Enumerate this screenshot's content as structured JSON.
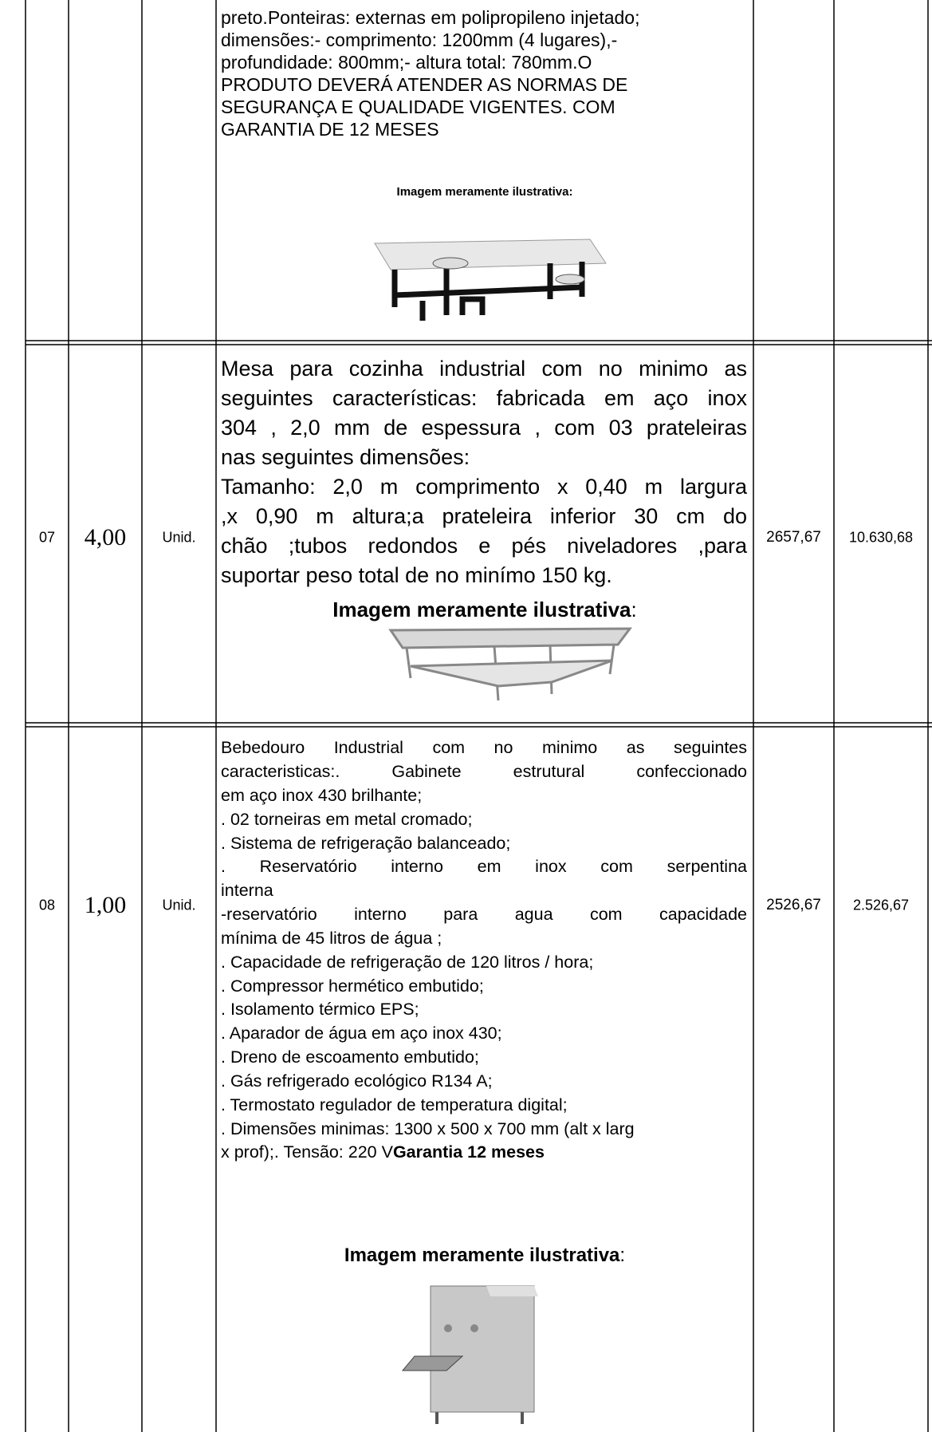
{
  "table": {
    "rows": [
      {
        "description": [
          "preto.Ponteiras: externas em polipropileno injetado;",
          "dimensões:- comprimento: 1200mm (4 lugares),-",
          "profundidade: 800mm;- altura total: 780mm.O",
          "PRODUTO DEVERÁ ATENDER AS NORMAS DE",
          "SEGURANÇA E QUALIDADE VIGENTES. COM",
          "GARANTIA DE 12 MESES"
        ],
        "image_caption": "Imagem meramente ilustrativa:"
      },
      {
        "item": "07",
        "quantity": "4,00",
        "unit": "Unid.",
        "description": [
          "Mesa   para cozinha industrial com no minimo as",
          "seguintes características: fabricada  em aço inox",
          "304 , 2,0 mm de espessura , com 03 prateleiras",
          "nas seguintes dimensões:",
          " Tamanho: 2,0 m comprimento x 0,40 m largura",
          ",x 0,90 m altura;a prateleira inferior     30 cm do",
          "chão ;tubos redondos e pés niveladores ,para",
          "suportar peso total de no minímo 150 kg."
        ],
        "image_caption": "Imagem meramente ilustrativa",
        "image_caption_suffix": ":",
        "unit_price": "2657,67",
        "total": "10.630,68"
      },
      {
        "item": "08",
        "quantity": "1,00",
        "unit": "Unid.",
        "description": [
          "Bebedouro Industrial  com no minimo as seguintes",
          "caracteristicas:. Gabinete estrutural confeccionado",
          "em aço inox 430 brilhante;",
          ". 02 torneiras  em metal cromado;",
          ". Sistema de refrigeração balanceado;",
          ".  Reservatório  interno  em  inox  com  serpentina",
          "interna",
          "-reservatório  interno  para  agua  com  capacidade",
          "mínima de 45  litros de água ;",
          ". Capacidade de refrigeração de 120 litros / hora;",
          ". Compressor hermético embutido;",
          ". Isolamento térmico EPS;",
          ". Aparador de água em aço inox 430;",
          ". Dreno de escoamento embutido;",
          ". Gás refrigerado ecológico R134 A;",
          ". Termostato regulador de temperatura digital;",
          ". Dimensões minimas: 1300 x 500 x 700 mm (alt x larg",
          "x prof);. Tensão: 220 V"
        ],
        "warranty": "Garantia  12 meses",
        "image_caption": "Imagem meramente ilustrativa",
        "image_caption_suffix": ":",
        "unit_price": "2526,67",
        "total": "2.526,67"
      }
    ]
  }
}
